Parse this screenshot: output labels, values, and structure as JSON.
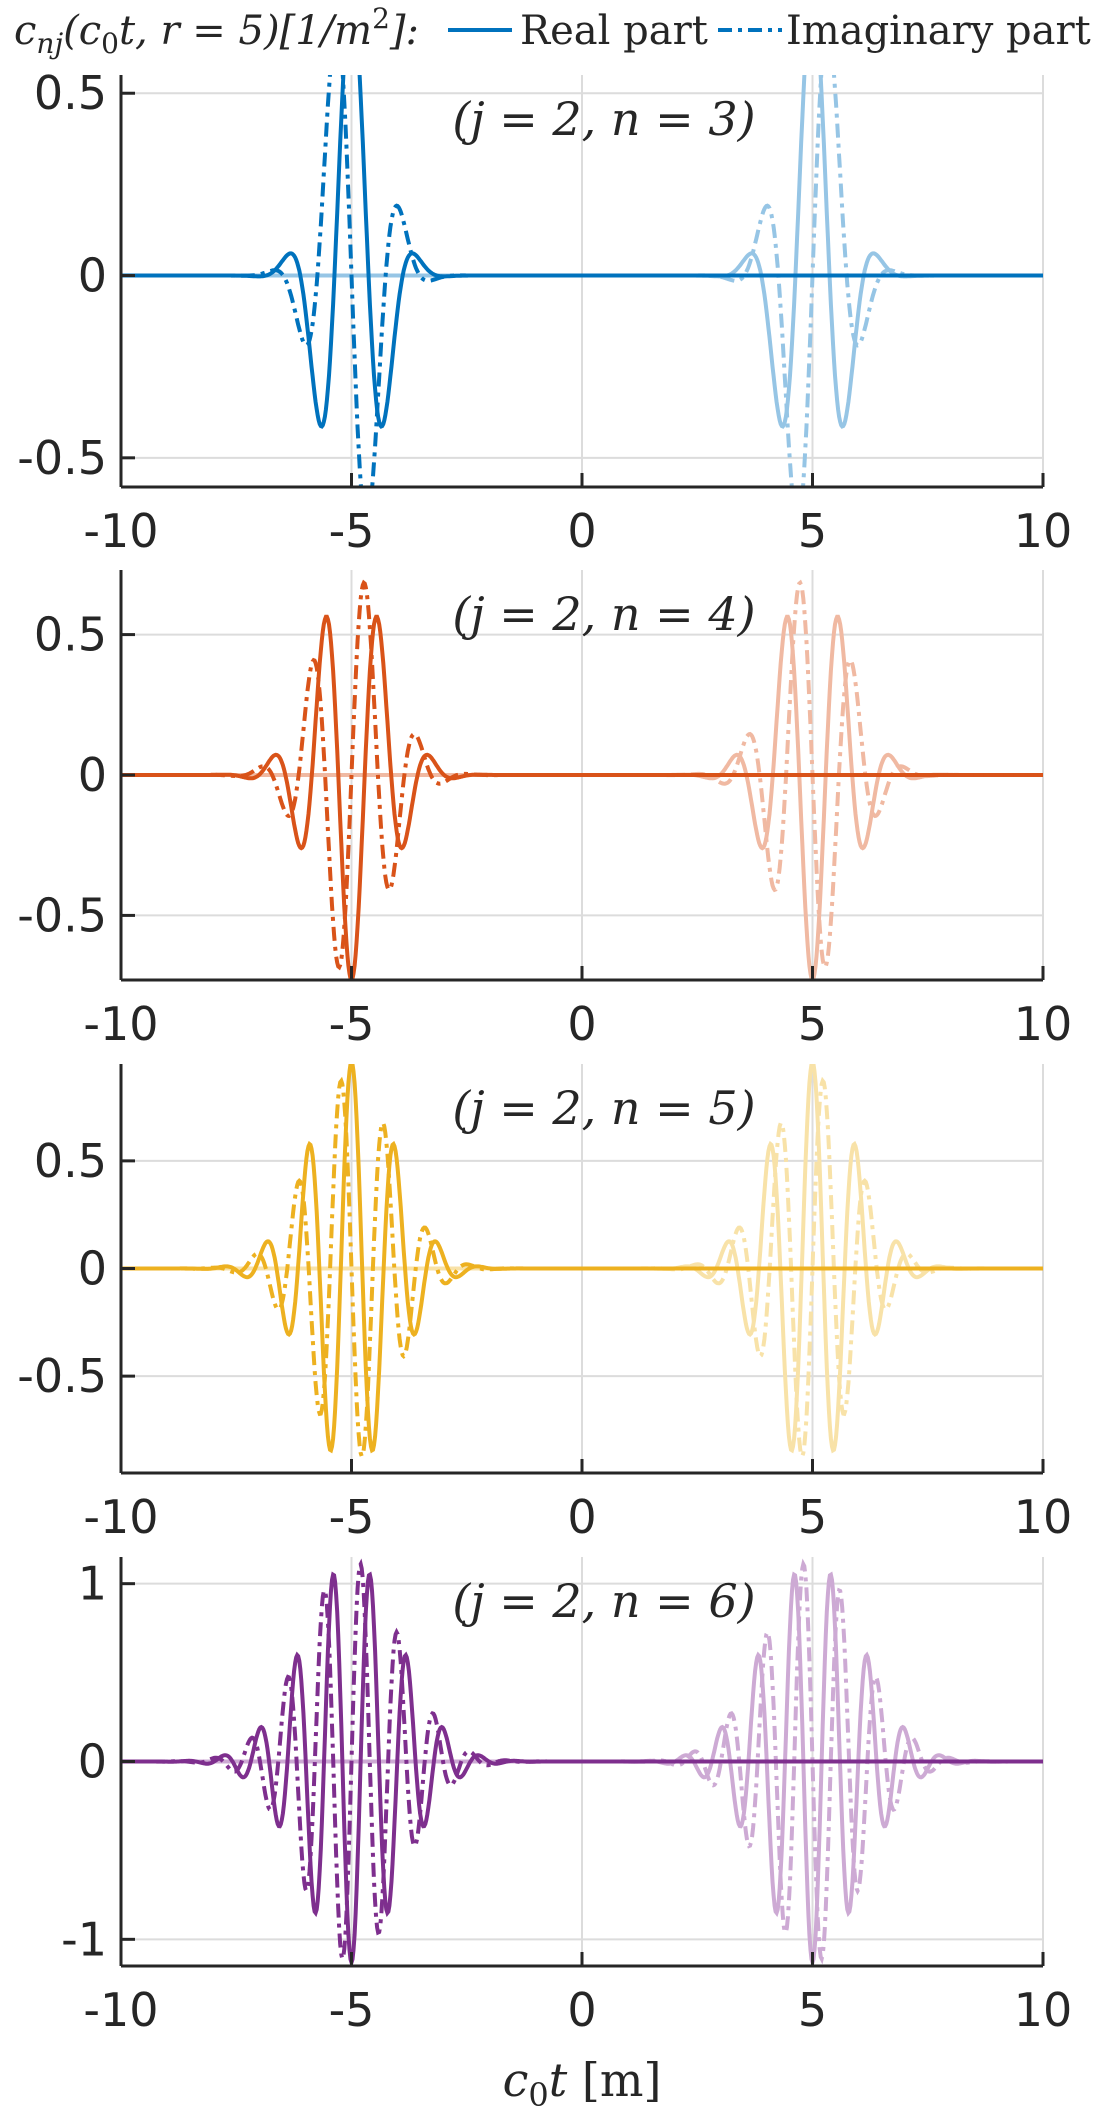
{
  "chart_data": {
    "type": "line",
    "legend": {
      "placement": "top",
      "label_prefix": "c",
      "label_sub": "nj",
      "label_args": "(c",
      "label_args_sub": "0",
      "label_args_rest": "t, r = 5)[1/m",
      "label_sup": "2",
      "label_suffix": "]:",
      "entries": [
        {
          "name": "Real part",
          "style": "solid"
        },
        {
          "name": "Imaginary part",
          "style": "dashdot"
        }
      ]
    },
    "xlabel": "m",
    "xlabel_var": "c",
    "xlabel_sub": "0",
    "xlabel_var2": "t",
    "xlim": [
      -10,
      10
    ],
    "grid": true,
    "panels": [
      {
        "annotation": "(j = 2, n = 3)",
        "n": 3,
        "color": "#0072BD",
        "faint_color": "#96C5E5",
        "ylim": [
          -0.58,
          0.55
        ],
        "yticks": [
          -0.5,
          0,
          0.5
        ],
        "ytick_labels": [
          "-0.5",
          "0",
          "0.5"
        ],
        "xticks": [
          -10,
          -5,
          0,
          5,
          10
        ],
        "xtick_labels": [
          "-10",
          "-5",
          "0",
          "5",
          "10"
        ],
        "amp_real": 0.78,
        "amp_imag": 0.8,
        "sigma": 0.33
      },
      {
        "annotation": "(j = 2, n = 4)",
        "n": 4,
        "color": "#D95319",
        "faint_color": "#F0B9A2",
        "ylim": [
          -0.73,
          0.73
        ],
        "yticks": [
          -0.5,
          0,
          0.5
        ],
        "ytick_labels": [
          "-0.5",
          "0",
          "0.5"
        ],
        "xticks": [
          -10,
          -5,
          0,
          5,
          10
        ],
        "xtick_labels": [
          "-10",
          "-5",
          "0",
          "5",
          "10"
        ],
        "amp_real": 0.73,
        "amp_imag": 0.73,
        "sigma": 0.4
      },
      {
        "annotation": "(j = 2, n = 5)",
        "n": 5,
        "color": "#EDB120",
        "faint_color": "#F8E2A8",
        "ylim": [
          -0.95,
          0.95
        ],
        "yticks": [
          -0.5,
          0,
          0.5
        ],
        "ytick_labels": [
          "-0.5",
          "0",
          "0.5"
        ],
        "xticks": [
          -10,
          -5,
          0,
          5,
          10
        ],
        "xtick_labels": [
          "-10",
          "-5",
          "0",
          "5",
          "10"
        ],
        "amp_real": 0.96,
        "amp_imag": 0.9,
        "sigma": 0.45
      },
      {
        "annotation": "(j = 2, n = 6)",
        "n": 6,
        "color": "#7E2F8E",
        "faint_color": "#CDAAD4",
        "ylim": [
          -1.15,
          1.15
        ],
        "yticks": [
          -1,
          0,
          1
        ],
        "ytick_labels": [
          "-1",
          "0",
          "1"
        ],
        "xticks": [
          -10,
          -5,
          0,
          5,
          10
        ],
        "xtick_labels": [
          "-10",
          "-5",
          "0",
          "5",
          "10"
        ],
        "amp_real": 1.13,
        "amp_imag": 1.13,
        "sigma": 0.5
      }
    ],
    "pulse_centers": [
      -5,
      5
    ]
  }
}
